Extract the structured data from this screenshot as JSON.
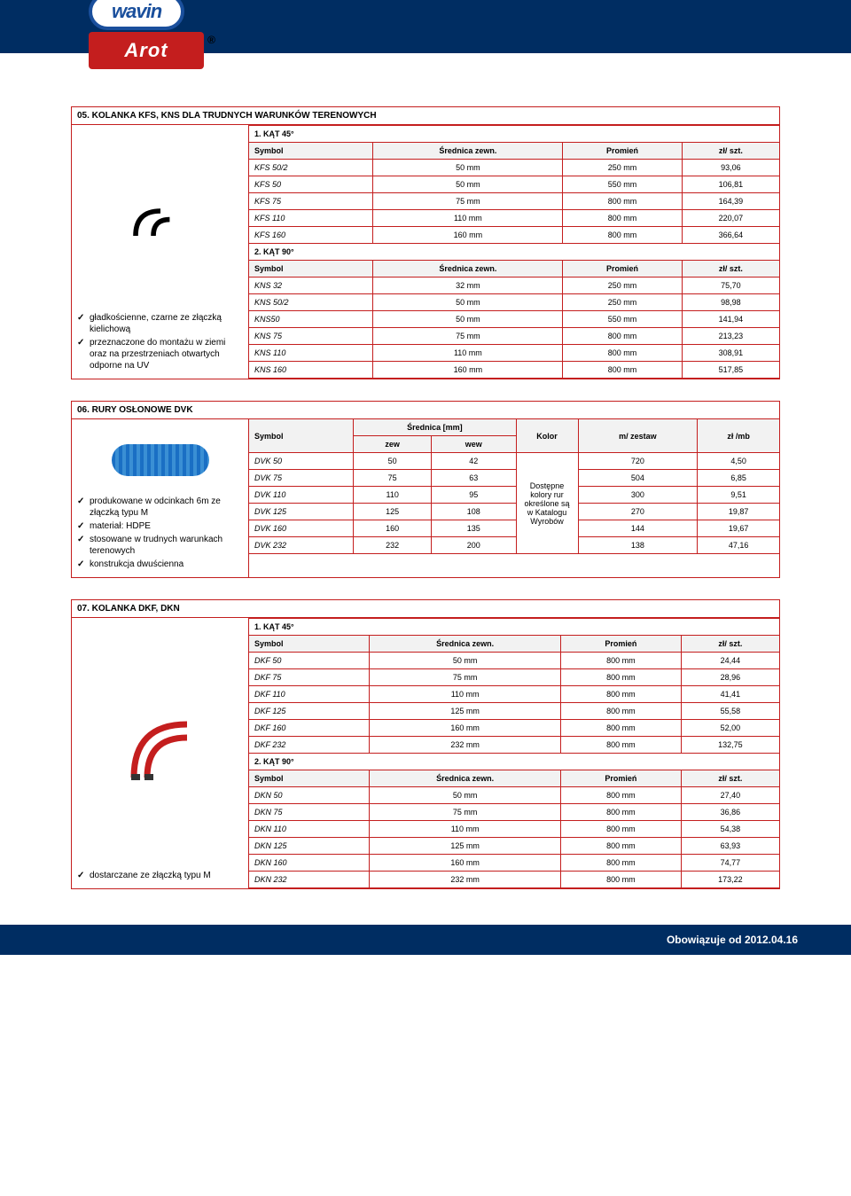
{
  "header": {
    "logo1": "wavin",
    "logo2": "Arot"
  },
  "section05": {
    "title": "05. KOLANKA KFS, KNS DLA TRUDNYCH WARUNKÓW TERENOWYCH",
    "bullets": [
      "gładkościenne, czarne ze złączką kielichową",
      "przeznaczone do montażu w ziemi oraz na przestrzeniach otwartych odporne na UV"
    ],
    "sub1": "1. KĄT 45°",
    "sub2": "2. KĄT 90°",
    "cols": [
      "Symbol",
      "Średnica zewn.",
      "Promień",
      "zł/ szt."
    ],
    "rows1": [
      [
        "KFS 50/2",
        "50 mm",
        "250 mm",
        "93,06"
      ],
      [
        "KFS 50",
        "50 mm",
        "550 mm",
        "106,81"
      ],
      [
        "KFS 75",
        "75 mm",
        "800 mm",
        "164,39"
      ],
      [
        "KFS 110",
        "110 mm",
        "800 mm",
        "220,07"
      ],
      [
        "KFS 160",
        "160 mm",
        "800 mm",
        "366,64"
      ]
    ],
    "rows2": [
      [
        "KNS 32",
        "32 mm",
        "250 mm",
        "75,70"
      ],
      [
        "KNS 50/2",
        "50 mm",
        "250 mm",
        "98,98"
      ],
      [
        "KNS50",
        "50 mm",
        "550 mm",
        "141,94"
      ],
      [
        "KNS 75",
        "75 mm",
        "800 mm",
        "213,23"
      ],
      [
        "KNS 110",
        "110 mm",
        "800 mm",
        "308,91"
      ],
      [
        "KNS 160",
        "160 mm",
        "800 mm",
        "517,85"
      ]
    ]
  },
  "section06": {
    "title": "06. RURY OSŁONOWE DVK",
    "bullets": [
      "produkowane w odcinkach 6m ze złączką typu M",
      "materiał: HDPE",
      "stosowane w trudnych warunkach terenowych",
      "konstrukcja dwuścienna"
    ],
    "cols_top": [
      "Symbol",
      "Średnica [mm]",
      "Kolor",
      "m/ zestaw",
      "zł /mb"
    ],
    "cols_sub": [
      "zew",
      "wew"
    ],
    "kolor_text": "Dostępne kolory rur określone są w Katalogu Wyrobów",
    "rows": [
      [
        "DVK 50",
        "50",
        "42",
        "720",
        "4,50"
      ],
      [
        "DVK 75",
        "75",
        "63",
        "504",
        "6,85"
      ],
      [
        "DVK 110",
        "110",
        "95",
        "300",
        "9,51"
      ],
      [
        "DVK 125",
        "125",
        "108",
        "270",
        "19,87"
      ],
      [
        "DVK 160",
        "160",
        "135",
        "144",
        "19,67"
      ],
      [
        "DVK 232",
        "232",
        "200",
        "138",
        "47,16"
      ]
    ]
  },
  "section07": {
    "title": "07. KOLANKA DKF, DKN",
    "bullets": [
      "dostarczane ze złączką typu M"
    ],
    "sub1": "1. KĄT 45°",
    "sub2": "2. KĄT 90°",
    "cols": [
      "Symbol",
      "Średnica zewn.",
      "Promień",
      "zł/ szt."
    ],
    "rows1": [
      [
        "DKF 50",
        "50 mm",
        "800 mm",
        "24,44"
      ],
      [
        "DKF 75",
        "75 mm",
        "800 mm",
        "28,96"
      ],
      [
        "DKF 110",
        "110 mm",
        "800 mm",
        "41,41"
      ],
      [
        "DKF 125",
        "125 mm",
        "800 mm",
        "55,58"
      ],
      [
        "DKF 160",
        "160 mm",
        "800 mm",
        "52,00"
      ],
      [
        "DKF 232",
        "232 mm",
        "800 mm",
        "132,75"
      ]
    ],
    "rows2": [
      [
        "DKN 50",
        "50 mm",
        "800 mm",
        "27,40"
      ],
      [
        "DKN 75",
        "75 mm",
        "800 mm",
        "36,86"
      ],
      [
        "DKN 110",
        "110 mm",
        "800 mm",
        "54,38"
      ],
      [
        "DKN 125",
        "125 mm",
        "800 mm",
        "63,93"
      ],
      [
        "DKN 160",
        "160 mm",
        "800 mm",
        "74,77"
      ],
      [
        "DKN 232",
        "232 mm",
        "800 mm",
        "173,22"
      ]
    ]
  },
  "footer": "Obowiązuje od 2012.04.16"
}
